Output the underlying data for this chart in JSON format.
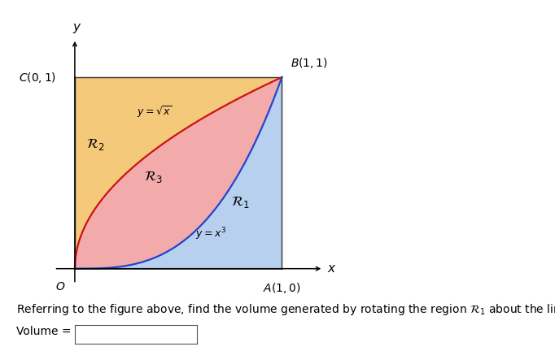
{
  "background_outer": "#d8d8d8",
  "background_plot": "#ffffff",
  "color_R2": "#f5c97a",
  "color_R3": "#f2aaaa",
  "color_R1": "#b8d0f0",
  "color_sqrt_curve": "#cc1111",
  "color_cube_curve": "#2244cc",
  "color_border": "#333333",
  "font_size_axis_label": 11,
  "font_size_point": 10,
  "font_size_region": 12,
  "font_size_curve": 9,
  "font_size_bottom": 10,
  "bottom_text": "Referring to the figure above, find the volume generated by rotating the region $\\mathcal{R}_1$ about the line $OC$.",
  "volume_label": "Volume = "
}
